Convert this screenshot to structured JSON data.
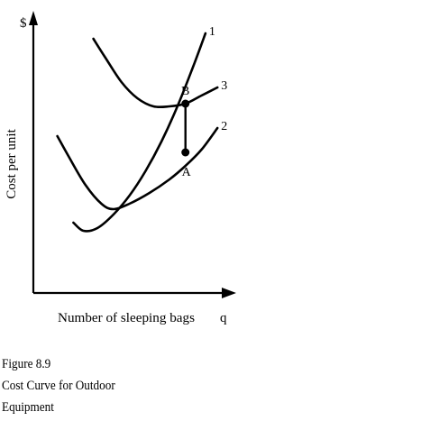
{
  "chart_data": {
    "type": "line",
    "ylabel": "Cost per unit",
    "y_axis_symbol": "$",
    "xlabel": "Number of sleeping bags",
    "x_axis_symbol": "q",
    "ticks": "none",
    "series": [
      {
        "name": "1",
        "points": [
          [
            0.2,
            0.26
          ],
          [
            0.25,
            0.23
          ],
          [
            0.32,
            0.24
          ],
          [
            0.4,
            0.29
          ],
          [
            0.48,
            0.36
          ],
          [
            0.56,
            0.45
          ],
          [
            0.64,
            0.56
          ],
          [
            0.72,
            0.69
          ],
          [
            0.8,
            0.84
          ],
          [
            0.86,
            0.96
          ]
        ]
      },
      {
        "name": "2",
        "points": [
          [
            0.12,
            0.58
          ],
          [
            0.18,
            0.5
          ],
          [
            0.26,
            0.4
          ],
          [
            0.34,
            0.33
          ],
          [
            0.4,
            0.31
          ],
          [
            0.48,
            0.33
          ],
          [
            0.58,
            0.37
          ],
          [
            0.68,
            0.42
          ],
          [
            0.76,
            0.47
          ],
          [
            0.84,
            0.53
          ],
          [
            0.92,
            0.61
          ]
        ]
      },
      {
        "name": "3",
        "points": [
          [
            0.3,
            0.94
          ],
          [
            0.36,
            0.87
          ],
          [
            0.44,
            0.78
          ],
          [
            0.52,
            0.72
          ],
          [
            0.6,
            0.69
          ],
          [
            0.68,
            0.69
          ],
          [
            0.76,
            0.7
          ],
          [
            0.84,
            0.73
          ],
          [
            0.92,
            0.76
          ]
        ]
      }
    ],
    "points": [
      {
        "label": "B",
        "x": 0.76,
        "y": 0.7
      },
      {
        "label": "A",
        "x": 0.76,
        "y": 0.52
      }
    ],
    "connector": {
      "from": "B",
      "to": "A"
    }
  },
  "caption": {
    "figure": "Figure 8.9",
    "line1": "Cost Curve for Outdoor",
    "line2": "Equipment"
  }
}
